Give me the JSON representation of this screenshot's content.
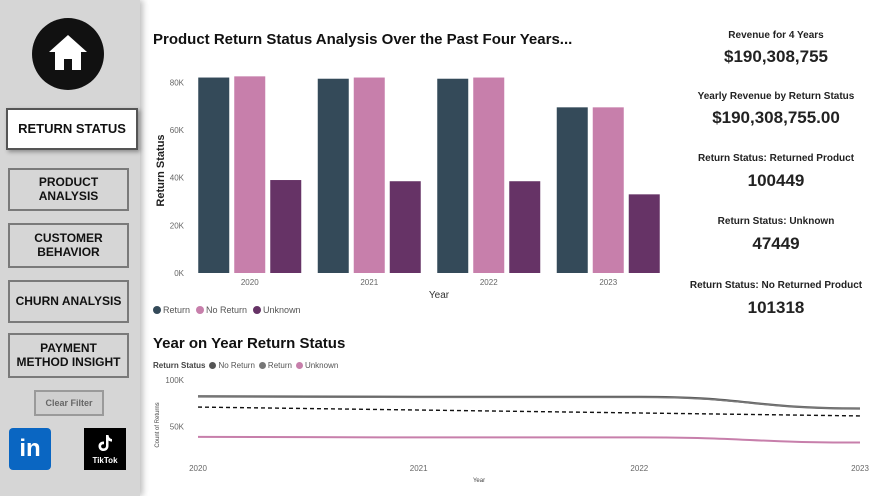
{
  "nav": {
    "return_status": "RETURN STATUS",
    "product_analysis": "PRODUCT ANALYSIS",
    "customer_behavior": "CUSTOMER BEHAVIOR",
    "churn_analysis": "CHURN ANALYSIS",
    "payment_method": "PAYMENT METHOD INSIGHT",
    "clear_filter": "Clear Filter",
    "tiktok_label": "TikTok",
    "linkedin_label": "in"
  },
  "main_title": "Product Return Status Analysis Over the Past Four Years...",
  "yoy_title": "Year on Year Return Status",
  "kpis": [
    {
      "label": "Revenue for 4 Years",
      "value": "$190,308,755"
    },
    {
      "label": "Yearly Revenue by Return Status",
      "value": "$190,308,755.00"
    },
    {
      "label": "Return Status: Returned Product",
      "value": "100449"
    },
    {
      "label": "Return Status: Unknown",
      "value": "47449"
    },
    {
      "label": "Return Status: No Returned Product",
      "value": "101318"
    }
  ],
  "colors": {
    "return": "#344a59",
    "no_return": "#c77fab",
    "unknown": "#663366"
  },
  "chart_data": [
    {
      "type": "bar",
      "title": "Product Return Status Analysis Over the Past Four Years...",
      "xlabel": "Year",
      "ylabel": "Return Status",
      "categories": [
        "2020",
        "2021",
        "2022",
        "2023"
      ],
      "series": [
        {
          "name": "Return",
          "values": [
            82000,
            81500,
            81500,
            69500
          ]
        },
        {
          "name": "No Return",
          "values": [
            82500,
            82000,
            82000,
            69500
          ]
        },
        {
          "name": "Unknown",
          "values": [
            39000,
            38500,
            38500,
            33000
          ]
        }
      ],
      "ylim": [
        0,
        86000
      ],
      "yticks": [
        "0K",
        "20K",
        "40K",
        "60K",
        "80K"
      ],
      "legend_position": "bottom-left"
    },
    {
      "type": "line",
      "title": "Year on Year Return Status",
      "xlabel": "Year",
      "ylabel": "Count of Returns",
      "legend_title": "Return Status",
      "x": [
        "2020",
        "2021",
        "2022",
        "2023"
      ],
      "series": [
        {
          "name": "No Return",
          "values": [
            82500,
            82000,
            82000,
            69500
          ]
        },
        {
          "name": "Return",
          "values": [
            82000,
            81500,
            81500,
            69500
          ]
        },
        {
          "name": "Unknown",
          "values": [
            39000,
            38500,
            38500,
            33000
          ]
        }
      ],
      "trend_line": [
        71000,
        68000,
        65000,
        61500
      ],
      "yticks": [
        "50K",
        "100K"
      ],
      "ylim": [
        25000,
        100000
      ],
      "legend_position": "top-left"
    }
  ]
}
